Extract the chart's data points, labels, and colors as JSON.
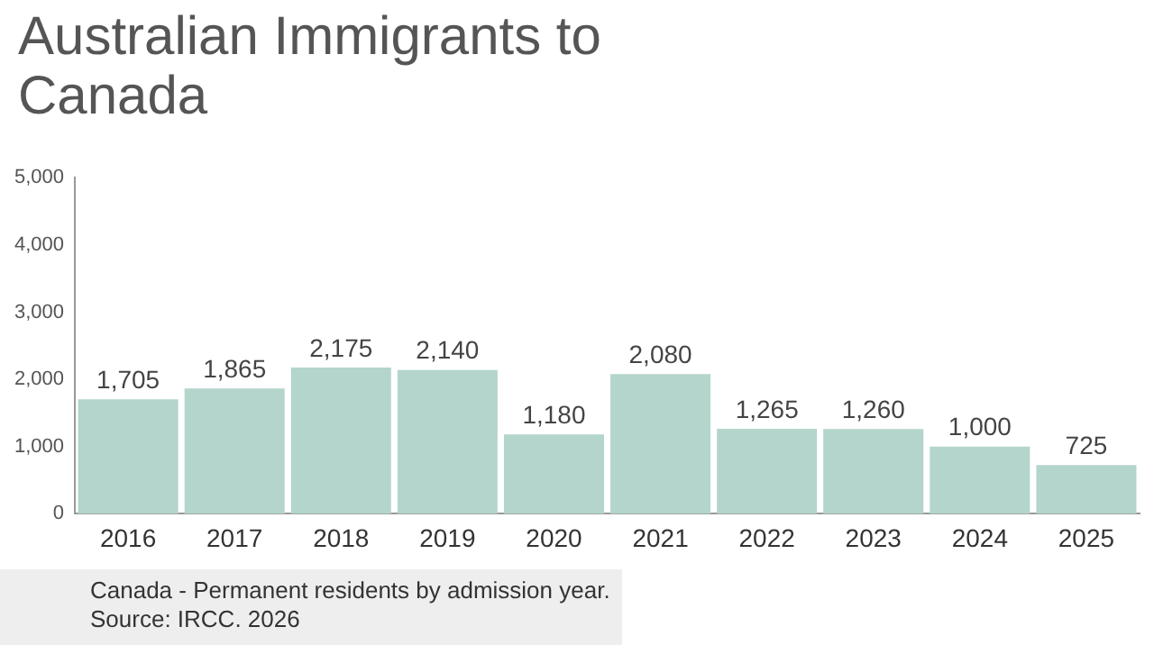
{
  "chart_data": {
    "type": "bar",
    "title": "Australian Immigrants to Canada",
    "categories": [
      "2016",
      "2017",
      "2018",
      "2019",
      "2020",
      "2021",
      "2022",
      "2023",
      "2024",
      "2025"
    ],
    "values": [
      1705,
      1865,
      2175,
      2140,
      1180,
      2080,
      1265,
      1260,
      1000,
      725
    ],
    "value_labels": [
      "1,705",
      "1,865",
      "2,175",
      "2,140",
      "1,180",
      "2,080",
      "1,265",
      "1,260",
      "1,000",
      "725"
    ],
    "color": "#b3d5cc",
    "ylim": [
      0,
      5000
    ],
    "yticks": [
      0,
      {
        "value": 1000,
        "label": "1,000"
      },
      {
        "value": 2000,
        "label": "2,000"
      },
      {
        "value": 3000,
        "label": "3,000"
      },
      {
        "value": 4000,
        "label": "4,000"
      },
      {
        "value": 5000,
        "label": "5,000"
      }
    ],
    "grid": false,
    "legend": false,
    "annotations": [
      "Canada - Permanent residents by admission year.",
      "Source: IRCC. 2026"
    ]
  }
}
